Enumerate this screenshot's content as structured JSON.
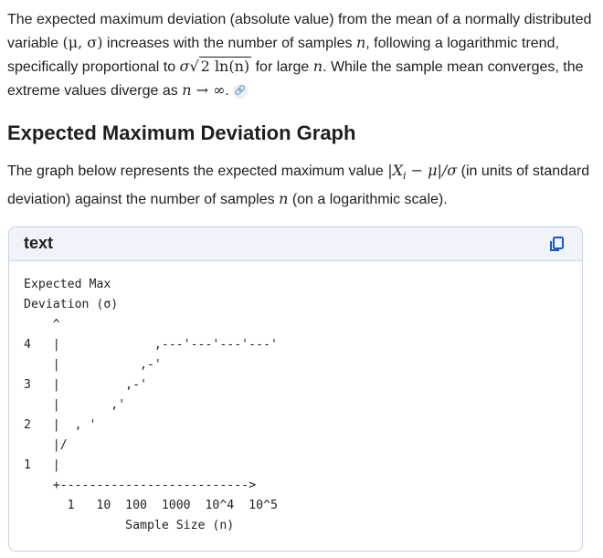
{
  "intro": {
    "t1": "The expected maximum deviation (absolute value) from the mean of a normally distributed variable ",
    "m_params": "(μ, σ)",
    "t2": " increases with the number of samples ",
    "m_n": "n",
    "t3": ", following a logarithmic trend, specifically proportional to ",
    "m_sigma": "σ",
    "m_sqrt_inner": "2 ln(n)",
    "t4": " for large ",
    "m_n2": "n",
    "t5": ". While the sample mean converges, the extreme values diverge as ",
    "m_limit": "n → ∞",
    "t6": "."
  },
  "section": {
    "heading": "Expected Maximum Deviation Graph",
    "t1": "The graph below represents the expected maximum value ",
    "m_expr": "|X",
    "m_sub": "i",
    "m_expr2": " − μ|/σ",
    "t2": " (in units of standard deviation) against the number of samples ",
    "m_n": "n",
    "t3": " (on a logarithmic scale)."
  },
  "code_block": {
    "language": "text",
    "copy_icon": "copy-icon",
    "content": "Expected Max\nDeviation (σ)\n    ^\n4   |             ,---'---'---'---'\n    |           ,-'\n3   |         ,-'\n    |       ,'\n2   |  , '\n    |/\n1   |\n    +-------------------------->\n      1   10  100  1000  10^4  10^5\n              Sample Size (n)"
  },
  "colors": {
    "text": "#1f1f1f",
    "code_header_bg": "#f0f4fa",
    "code_border": "#c7d2e4",
    "icon_blue": "#1a56c4"
  }
}
